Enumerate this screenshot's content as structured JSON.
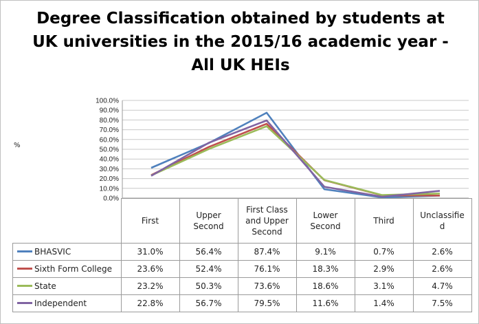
{
  "chart_data": {
    "type": "line",
    "title": "Degree Classification obtained by students at UK universities in the 2015/16 academic year - All UK HEIs",
    "ylabel": "%",
    "ylim": [
      0,
      100
    ],
    "yticks": [
      "0.0%",
      "10.0%",
      "20.0%",
      "30.0%",
      "40.0%",
      "50.0%",
      "60.0%",
      "70.0%",
      "80.0%",
      "90.0%",
      "100.0%"
    ],
    "categories": [
      "First",
      "Upper Second",
      "First Class and Upper Second",
      "Lower Second",
      "Third",
      "Unclassified"
    ],
    "grid": true,
    "legend": "data-table-below",
    "series": [
      {
        "name": "BHASVIC",
        "color": "#4f81bd",
        "values": [
          31.0,
          56.4,
          87.4,
          9.1,
          0.7,
          2.6
        ],
        "labels": [
          "31.0%",
          "56.4%",
          "87.4%",
          "9.1%",
          "0.7%",
          "2.6%"
        ]
      },
      {
        "name": "Sixth Form College",
        "color": "#c0504d",
        "values": [
          23.6,
          52.4,
          76.1,
          18.3,
          2.9,
          2.6
        ],
        "labels": [
          "23.6%",
          "52.4%",
          "76.1%",
          "18.3%",
          "2.9%",
          "2.6%"
        ]
      },
      {
        "name": "State",
        "color": "#9bbb59",
        "values": [
          23.2,
          50.3,
          73.6,
          18.6,
          3.1,
          4.7
        ],
        "labels": [
          "23.2%",
          "50.3%",
          "73.6%",
          "18.6%",
          "3.1%",
          "4.7%"
        ]
      },
      {
        "name": "Independent",
        "color": "#8064a2",
        "values": [
          22.8,
          56.7,
          79.5,
          11.6,
          1.4,
          7.5
        ],
        "labels": [
          "22.8%",
          "56.7%",
          "79.5%",
          "11.6%",
          "1.4%",
          "7.5%"
        ]
      }
    ]
  }
}
